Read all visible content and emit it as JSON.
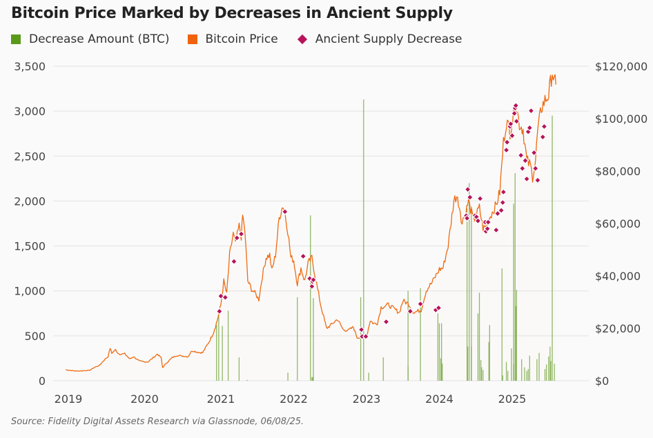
{
  "title": "Bitcoin Price Marked by Decreases in Ancient Supply",
  "source": "Source: Fidelity Digital Assets Research via Glassnode, 06/08/25.",
  "colors": {
    "bar": "#6b9a2e",
    "price": "#ef6a10",
    "marker": "#b5145a",
    "grid": "#e2e2e2"
  },
  "chart_data": {
    "type": "line",
    "title": "Bitcoin Price Marked by Decreases in Ancient Supply",
    "legend": [
      {
        "name": "Decrease Amount (BTC)",
        "type": "bar",
        "color": "#6b9a2e"
      },
      {
        "name": "Bitcoin Price",
        "type": "area",
        "color": "#ef6a10"
      },
      {
        "name": "Ancient Supply Decrease",
        "type": "marker",
        "color": "#b5145a"
      }
    ],
    "legend_position": "top-left",
    "grid": true,
    "x_ticks": [
      "2019",
      "2020",
      "2021",
      "2022",
      "2023",
      "2024",
      "2025"
    ],
    "x_tick_values": [
      2019,
      2020,
      2021,
      2022,
      2023,
      2024,
      2025
    ],
    "xlim": [
      2018.87,
      2025.6
    ],
    "y_left": {
      "label": "Decrease Amount (BTC)",
      "ticks": [
        "0",
        "500",
        "1,000",
        "1,500",
        "2,000",
        "2,500",
        "3,000",
        "3,500"
      ],
      "lim": [
        0,
        3500
      ]
    },
    "y_right": {
      "label": "Bitcoin Price",
      "ticks": [
        "$0",
        "$20,000",
        "$40,000",
        "$60,000",
        "$80,000",
        "$100,000",
        "$120,000"
      ],
      "lim": [
        0,
        120000
      ]
    },
    "price_series": [
      [
        2018.87,
        4200
      ],
      [
        2018.95,
        3900
      ],
      [
        2019.0,
        3700
      ],
      [
        2019.1,
        3800
      ],
      [
        2019.2,
        4000
      ],
      [
        2019.27,
        5200
      ],
      [
        2019.33,
        5800
      ],
      [
        2019.4,
        8000
      ],
      [
        2019.45,
        9200
      ],
      [
        2019.48,
        12500
      ],
      [
        2019.5,
        10500
      ],
      [
        2019.55,
        11800
      ],
      [
        2019.6,
        10200
      ],
      [
        2019.68,
        10300
      ],
      [
        2019.75,
        8300
      ],
      [
        2019.8,
        9200
      ],
      [
        2019.88,
        7500
      ],
      [
        2019.95,
        7200
      ],
      [
        2020.0,
        7200
      ],
      [
        2020.1,
        9500
      ],
      [
        2020.13,
        10200
      ],
      [
        2020.18,
        8700
      ],
      [
        2020.2,
        5000
      ],
      [
        2020.25,
        6700
      ],
      [
        2020.33,
        8800
      ],
      [
        2020.4,
        9700
      ],
      [
        2020.45,
        9500
      ],
      [
        2020.55,
        9200
      ],
      [
        2020.6,
        11500
      ],
      [
        2020.7,
        10800
      ],
      [
        2020.75,
        10700
      ],
      [
        2020.8,
        13100
      ],
      [
        2020.85,
        15500
      ],
      [
        2020.9,
        18500
      ],
      [
        2020.95,
        23000
      ],
      [
        2021.0,
        29000
      ],
      [
        2021.04,
        38000
      ],
      [
        2021.08,
        33000
      ],
      [
        2021.12,
        48000
      ],
      [
        2021.17,
        56000
      ],
      [
        2021.2,
        52000
      ],
      [
        2021.25,
        59000
      ],
      [
        2021.28,
        55000
      ],
      [
        2021.3,
        63000
      ],
      [
        2021.33,
        57000
      ],
      [
        2021.37,
        38000
      ],
      [
        2021.42,
        35000
      ],
      [
        2021.48,
        33000
      ],
      [
        2021.52,
        31000
      ],
      [
        2021.57,
        40000
      ],
      [
        2021.62,
        47000
      ],
      [
        2021.67,
        48000
      ],
      [
        2021.7,
        42000
      ],
      [
        2021.75,
        48000
      ],
      [
        2021.8,
        62000
      ],
      [
        2021.85,
        67000
      ],
      [
        2021.88,
        64000
      ],
      [
        2021.92,
        57000
      ],
      [
        2021.96,
        47000
      ],
      [
        2022.0,
        46000
      ],
      [
        2022.05,
        37000
      ],
      [
        2022.1,
        43000
      ],
      [
        2022.15,
        38000
      ],
      [
        2022.2,
        45000
      ],
      [
        2022.25,
        47000
      ],
      [
        2022.3,
        39000
      ],
      [
        2022.37,
        29000
      ],
      [
        2022.45,
        20000
      ],
      [
        2022.5,
        21000
      ],
      [
        2022.6,
        23500
      ],
      [
        2022.68,
        19500
      ],
      [
        2022.75,
        19200
      ],
      [
        2022.82,
        20500
      ],
      [
        2022.87,
        16500
      ],
      [
        2022.95,
        16800
      ],
      [
        2023.0,
        16600
      ],
      [
        2023.05,
        23000
      ],
      [
        2023.1,
        21800
      ],
      [
        2023.15,
        22000
      ],
      [
        2023.2,
        28000
      ],
      [
        2023.3,
        29000
      ],
      [
        2023.4,
        27000
      ],
      [
        2023.45,
        26000
      ],
      [
        2023.5,
        30500
      ],
      [
        2023.58,
        29300
      ],
      [
        2023.65,
        26000
      ],
      [
        2023.75,
        27000
      ],
      [
        2023.82,
        34500
      ],
      [
        2023.9,
        37500
      ],
      [
        2024.0,
        42500
      ],
      [
        2024.05,
        43000
      ],
      [
        2024.12,
        51500
      ],
      [
        2024.2,
        69000
      ],
      [
        2024.25,
        71000
      ],
      [
        2024.3,
        61000
      ],
      [
        2024.35,
        63000
      ],
      [
        2024.4,
        68500
      ],
      [
        2024.47,
        61000
      ],
      [
        2024.55,
        66000
      ],
      [
        2024.6,
        58000
      ],
      [
        2024.65,
        59000
      ],
      [
        2024.7,
        63000
      ],
      [
        2024.78,
        67000
      ],
      [
        2024.83,
        72000
      ],
      [
        2024.88,
        91000
      ],
      [
        2024.92,
        99000
      ],
      [
        2024.97,
        95000
      ],
      [
        2025.02,
        102000
      ],
      [
        2025.05,
        106000
      ],
      [
        2025.1,
        98000
      ],
      [
        2025.15,
        96000
      ],
      [
        2025.2,
        84000
      ],
      [
        2025.25,
        82000
      ],
      [
        2025.28,
        78000
      ],
      [
        2025.32,
        84000
      ],
      [
        2025.35,
        95000
      ],
      [
        2025.4,
        104000
      ],
      [
        2025.45,
        107000
      ],
      [
        2025.5,
        109000
      ],
      [
        2025.55,
        118000
      ],
      [
        2025.58,
        114000
      ],
      [
        2025.6,
        113000
      ]
    ],
    "decrease_bars": [
      [
        2020.94,
        620
      ],
      [
        2020.97,
        780
      ],
      [
        2021.02,
        610
      ],
      [
        2021.1,
        780
      ],
      [
        2021.25,
        260
      ],
      [
        2021.36,
        10
      ],
      [
        2021.92,
        90
      ],
      [
        2022.05,
        930
      ],
      [
        2022.23,
        1840
      ],
      [
        2022.27,
        920
      ],
      [
        2022.25,
        40
      ],
      [
        2022.26,
        40
      ],
      [
        2022.92,
        930
      ],
      [
        2022.96,
        3130
      ],
      [
        2023.03,
        90
      ],
      [
        2023.23,
        260
      ],
      [
        2023.57,
        1000
      ],
      [
        2023.57,
        160
      ],
      [
        2023.74,
        1030
      ],
      [
        2023.98,
        750
      ],
      [
        2024.0,
        640
      ],
      [
        2024.02,
        250
      ],
      [
        2024.03,
        640
      ],
      [
        2024.04,
        190
      ],
      [
        2024.38,
        1920
      ],
      [
        2024.39,
        380
      ],
      [
        2024.41,
        2200
      ],
      [
        2024.44,
        1940
      ],
      [
        2024.44,
        380
      ],
      [
        2024.53,
        750
      ],
      [
        2024.55,
        980
      ],
      [
        2024.58,
        150
      ],
      [
        2024.6,
        120
      ],
      [
        2024.57,
        230
      ],
      [
        2024.68,
        430
      ],
      [
        2024.69,
        620
      ],
      [
        2024.86,
        1250
      ],
      [
        2024.87,
        60
      ],
      [
        2024.92,
        210
      ],
      [
        2024.94,
        110
      ],
      [
        2024.99,
        360
      ],
      [
        2025.02,
        1970
      ],
      [
        2025.02,
        190
      ],
      [
        2025.04,
        2310
      ],
      [
        2025.05,
        830
      ],
      [
        2025.06,
        1010
      ],
      [
        2025.13,
        240
      ],
      [
        2025.17,
        150
      ],
      [
        2025.2,
        110
      ],
      [
        2025.22,
        130
      ],
      [
        2025.24,
        280
      ],
      [
        2025.34,
        240
      ],
      [
        2025.37,
        310
      ],
      [
        2025.45,
        130
      ],
      [
        2025.47,
        180
      ],
      [
        2025.5,
        270
      ],
      [
        2025.52,
        380
      ],
      [
        2025.53,
        220
      ],
      [
        2025.55,
        2950
      ],
      [
        2025.58,
        190
      ]
    ],
    "supply_markers": [
      [
        2020.98,
        26500
      ],
      [
        2021.0,
        32300
      ],
      [
        2021.06,
        31800
      ],
      [
        2021.18,
        45500
      ],
      [
        2021.22,
        54500
      ],
      [
        2021.28,
        56000
      ],
      [
        2021.88,
        64500
      ],
      [
        2022.13,
        47500
      ],
      [
        2022.22,
        39000
      ],
      [
        2022.25,
        36000
      ],
      [
        2022.26,
        37800
      ],
      [
        2022.27,
        38500
      ],
      [
        2022.93,
        19500
      ],
      [
        2022.94,
        16900
      ],
      [
        2022.99,
        16900
      ],
      [
        2023.27,
        22500
      ],
      [
        2023.6,
        26500
      ],
      [
        2023.74,
        29300
      ],
      [
        2023.95,
        27000
      ],
      [
        2023.99,
        27800
      ],
      [
        2024.37,
        63000
      ],
      [
        2024.38,
        62000
      ],
      [
        2024.39,
        73000
      ],
      [
        2024.42,
        70000
      ],
      [
        2024.49,
        63000
      ],
      [
        2024.51,
        62500
      ],
      [
        2024.53,
        61000
      ],
      [
        2024.56,
        69500
      ],
      [
        2024.63,
        60500
      ],
      [
        2024.64,
        57000
      ],
      [
        2024.66,
        58000
      ],
      [
        2024.67,
        60500
      ],
      [
        2024.78,
        57500
      ],
      [
        2024.8,
        63800
      ],
      [
        2024.85,
        65000
      ],
      [
        2024.87,
        68000
      ],
      [
        2024.88,
        72000
      ],
      [
        2024.92,
        88000
      ],
      [
        2024.93,
        91000
      ],
      [
        2024.97,
        97000
      ],
      [
        2024.98,
        98000
      ],
      [
        2025.0,
        93500
      ],
      [
        2025.03,
        102000
      ],
      [
        2025.04,
        104000
      ],
      [
        2025.05,
        105000
      ],
      [
        2025.06,
        99000
      ],
      [
        2025.12,
        86000
      ],
      [
        2025.14,
        81000
      ],
      [
        2025.18,
        84000
      ],
      [
        2025.2,
        77000
      ],
      [
        2025.22,
        95000
      ],
      [
        2025.24,
        96500
      ],
      [
        2025.26,
        103000
      ],
      [
        2025.3,
        87000
      ],
      [
        2025.32,
        81000
      ],
      [
        2025.35,
        76500
      ],
      [
        2025.42,
        93000
      ],
      [
        2025.44,
        97000
      ]
    ]
  }
}
